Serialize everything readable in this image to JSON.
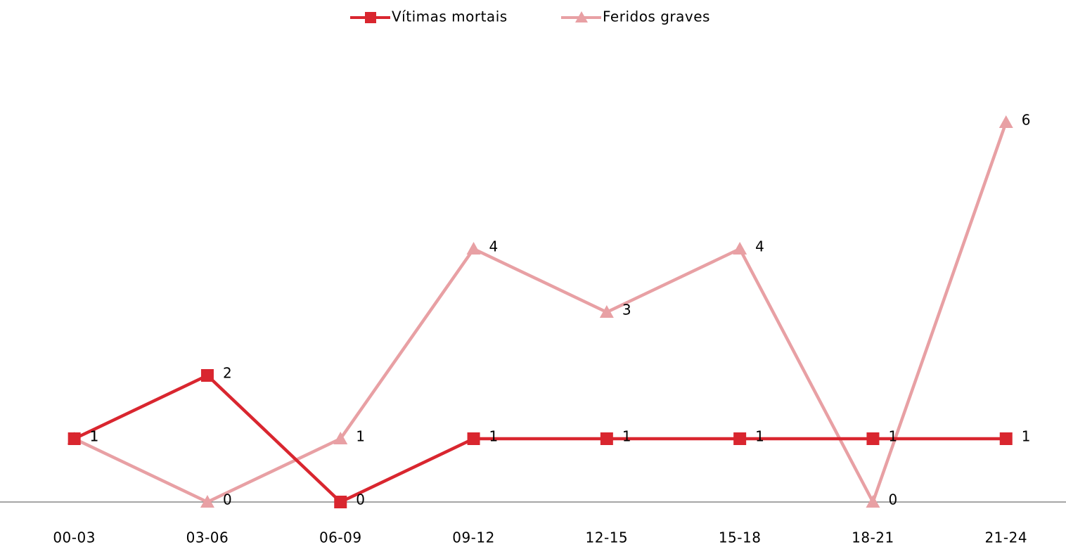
{
  "chart_data": {
    "type": "line",
    "categories": [
      "00-03",
      "03-06",
      "06-09",
      "09-12",
      "12-15",
      "15-18",
      "18-21",
      "21-24"
    ],
    "series": [
      {
        "name": "Vítimas mortais",
        "color": "#d9262f",
        "marker": "square",
        "values": [
          1,
          2,
          0,
          1,
          1,
          1,
          1,
          1
        ]
      },
      {
        "name": "Feridos graves",
        "color": "#e8a0a4",
        "marker": "triangle",
        "values": [
          1,
          0,
          1,
          4,
          3,
          4,
          0,
          6
        ]
      }
    ],
    "ylim": [
      0,
      7
    ],
    "legend": "top"
  }
}
